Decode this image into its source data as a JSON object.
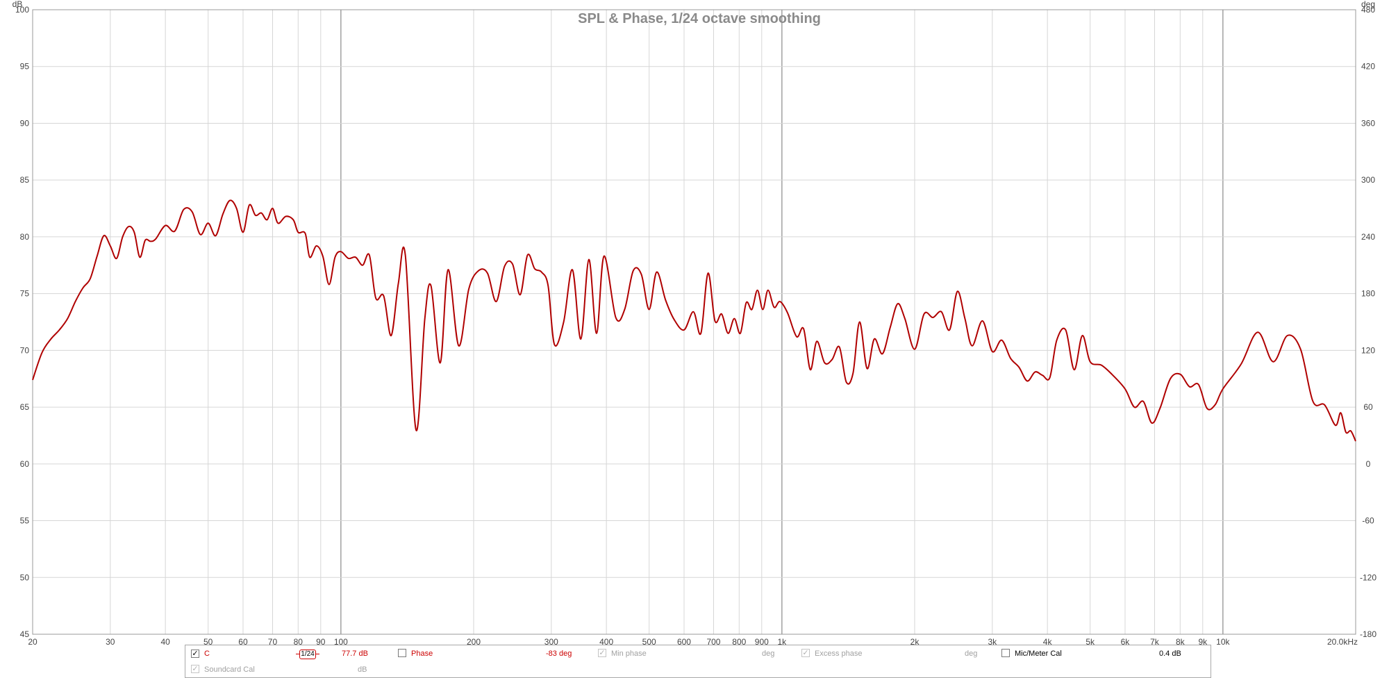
{
  "chart_data": {
    "type": "line",
    "title": "SPL & Phase, 1/24 octave smoothing",
    "x_scale": "log",
    "xlim": [
      20,
      20000
    ],
    "ylim": [
      45,
      100
    ],
    "y2lim": [
      -180,
      480
    ],
    "y_unit": "dB",
    "y2_unit": "deg",
    "x_unit": "kHz",
    "grid": true,
    "x_tick_labels": [
      {
        "v": 20,
        "t": "20"
      },
      {
        "v": 30,
        "t": "30"
      },
      {
        "v": 40,
        "t": "40"
      },
      {
        "v": 50,
        "t": "50"
      },
      {
        "v": 60,
        "t": "60"
      },
      {
        "v": 70,
        "t": "70"
      },
      {
        "v": 80,
        "t": "80"
      },
      {
        "v": 90,
        "t": "90"
      },
      {
        "v": 100,
        "t": "100"
      },
      {
        "v": 200,
        "t": "200"
      },
      {
        "v": 300,
        "t": "300"
      },
      {
        "v": 400,
        "t": "400"
      },
      {
        "v": 500,
        "t": "500"
      },
      {
        "v": 600,
        "t": "600"
      },
      {
        "v": 700,
        "t": "700"
      },
      {
        "v": 800,
        "t": "800"
      },
      {
        "v": 900,
        "t": "900"
      },
      {
        "v": 1000,
        "t": "1k"
      },
      {
        "v": 2000,
        "t": "2k"
      },
      {
        "v": 3000,
        "t": "3k"
      },
      {
        "v": 4000,
        "t": "4k"
      },
      {
        "v": 5000,
        "t": "5k"
      },
      {
        "v": 6000,
        "t": "6k"
      },
      {
        "v": 7000,
        "t": "7k"
      },
      {
        "v": 8000,
        "t": "8k"
      },
      {
        "v": 9000,
        "t": "9k"
      },
      {
        "v": 10000,
        "t": "10k"
      },
      {
        "v": 20000,
        "t": "20.0kHz"
      }
    ],
    "y_ticks": [
      45,
      50,
      55,
      60,
      65,
      70,
      75,
      80,
      85,
      90,
      95,
      100
    ],
    "y2_ticks": [
      -180,
      -120,
      -60,
      0,
      60,
      120,
      180,
      240,
      300,
      360,
      420,
      480
    ],
    "series": [
      {
        "name": "C",
        "color": "#b00000",
        "points": [
          [
            20,
            67.4
          ],
          [
            21,
            69.8
          ],
          [
            22,
            71.0
          ],
          [
            23,
            71.8
          ],
          [
            24,
            72.8
          ],
          [
            25,
            74.3
          ],
          [
            26,
            75.5
          ],
          [
            27,
            76.3
          ],
          [
            28,
            78.3
          ],
          [
            29,
            80.1
          ],
          [
            30,
            79.2
          ],
          [
            31,
            78.1
          ],
          [
            32,
            80.0
          ],
          [
            33,
            80.9
          ],
          [
            34,
            80.4
          ],
          [
            35,
            78.2
          ],
          [
            36,
            79.7
          ],
          [
            37,
            79.6
          ],
          [
            38,
            79.8
          ],
          [
            40,
            81.0
          ],
          [
            42,
            80.5
          ],
          [
            44,
            82.4
          ],
          [
            46,
            82.2
          ],
          [
            48,
            80.2
          ],
          [
            50,
            81.2
          ],
          [
            52,
            80.1
          ],
          [
            54,
            82.0
          ],
          [
            56,
            83.2
          ],
          [
            58,
            82.5
          ],
          [
            60,
            80.4
          ],
          [
            62,
            82.8
          ],
          [
            64,
            81.9
          ],
          [
            66,
            82.1
          ],
          [
            68,
            81.5
          ],
          [
            70,
            82.5
          ],
          [
            72,
            81.2
          ],
          [
            75,
            81.8
          ],
          [
            78,
            81.5
          ],
          [
            80,
            80.4
          ],
          [
            83,
            80.3
          ],
          [
            85,
            78.2
          ],
          [
            88,
            79.2
          ],
          [
            91,
            78.3
          ],
          [
            94,
            75.8
          ],
          [
            97,
            78.2
          ],
          [
            100,
            78.7
          ],
          [
            104,
            78.1
          ],
          [
            108,
            78.2
          ],
          [
            112,
            77.5
          ],
          [
            116,
            78.4
          ],
          [
            120,
            74.6
          ],
          [
            125,
            74.8
          ],
          [
            130,
            71.3
          ],
          [
            135,
            75.9
          ],
          [
            140,
            78.4
          ],
          [
            148,
            63.0
          ],
          [
            155,
            72.8
          ],
          [
            160,
            75.7
          ],
          [
            168,
            68.9
          ],
          [
            175,
            77.1
          ],
          [
            185,
            70.4
          ],
          [
            195,
            75.4
          ],
          [
            205,
            77.0
          ],
          [
            215,
            76.8
          ],
          [
            225,
            74.3
          ],
          [
            235,
            77.4
          ],
          [
            245,
            77.6
          ],
          [
            255,
            74.9
          ],
          [
            265,
            78.4
          ],
          [
            275,
            77.2
          ],
          [
            285,
            76.9
          ],
          [
            295,
            75.7
          ],
          [
            305,
            70.5
          ],
          [
            320,
            72.5
          ],
          [
            335,
            77.1
          ],
          [
            350,
            71.0
          ],
          [
            365,
            78.0
          ],
          [
            380,
            71.5
          ],
          [
            395,
            78.3
          ],
          [
            420,
            72.9
          ],
          [
            440,
            73.6
          ],
          [
            460,
            77.0
          ],
          [
            480,
            76.7
          ],
          [
            500,
            73.6
          ],
          [
            520,
            76.9
          ],
          [
            545,
            74.4
          ],
          [
            570,
            72.7
          ],
          [
            600,
            71.8
          ],
          [
            630,
            73.4
          ],
          [
            655,
            71.5
          ],
          [
            680,
            76.8
          ],
          [
            705,
            72.6
          ],
          [
            730,
            73.2
          ],
          [
            755,
            71.5
          ],
          [
            780,
            72.8
          ],
          [
            805,
            71.5
          ],
          [
            830,
            74.2
          ],
          [
            855,
            73.6
          ],
          [
            880,
            75.3
          ],
          [
            905,
            73.6
          ],
          [
            930,
            75.3
          ],
          [
            960,
            73.8
          ],
          [
            990,
            74.3
          ],
          [
            1030,
            73.3
          ],
          [
            1080,
            71.2
          ],
          [
            1120,
            71.9
          ],
          [
            1160,
            68.3
          ],
          [
            1200,
            70.8
          ],
          [
            1250,
            68.9
          ],
          [
            1300,
            69.2
          ],
          [
            1350,
            70.3
          ],
          [
            1400,
            67.2
          ],
          [
            1450,
            68.0
          ],
          [
            1500,
            72.5
          ],
          [
            1560,
            68.4
          ],
          [
            1620,
            71.0
          ],
          [
            1690,
            69.7
          ],
          [
            1760,
            72.0
          ],
          [
            1830,
            74.1
          ],
          [
            1900,
            72.8
          ],
          [
            2000,
            70.1
          ],
          [
            2100,
            73.2
          ],
          [
            2200,
            72.9
          ],
          [
            2300,
            73.4
          ],
          [
            2400,
            71.8
          ],
          [
            2500,
            75.2
          ],
          [
            2600,
            72.8
          ],
          [
            2700,
            70.4
          ],
          [
            2850,
            72.6
          ],
          [
            3000,
            69.9
          ],
          [
            3150,
            70.9
          ],
          [
            3300,
            69.3
          ],
          [
            3450,
            68.5
          ],
          [
            3600,
            67.3
          ],
          [
            3750,
            68.1
          ],
          [
            3900,
            67.8
          ],
          [
            4050,
            67.6
          ],
          [
            4200,
            70.9
          ],
          [
            4400,
            71.8
          ],
          [
            4600,
            68.3
          ],
          [
            4800,
            71.3
          ],
          [
            5000,
            69.0
          ],
          [
            5300,
            68.7
          ],
          [
            5600,
            67.9
          ],
          [
            6000,
            66.6
          ],
          [
            6300,
            65.0
          ],
          [
            6600,
            65.5
          ],
          [
            6900,
            63.6
          ],
          [
            7200,
            64.9
          ],
          [
            7600,
            67.5
          ],
          [
            8000,
            67.9
          ],
          [
            8400,
            66.8
          ],
          [
            8800,
            67.0
          ],
          [
            9200,
            64.9
          ],
          [
            9600,
            65.2
          ],
          [
            10000,
            66.6
          ],
          [
            11000,
            68.8
          ],
          [
            12000,
            71.6
          ],
          [
            13000,
            69.0
          ],
          [
            14000,
            71.3
          ],
          [
            15000,
            70.1
          ],
          [
            16000,
            65.5
          ],
          [
            17000,
            65.2
          ],
          [
            18000,
            63.4
          ],
          [
            18500,
            64.5
          ],
          [
            19000,
            62.8
          ],
          [
            19500,
            62.9
          ],
          [
            20000,
            62.0
          ]
        ]
      }
    ]
  },
  "legend": {
    "trace_label": "C",
    "smoothing": "1/24",
    "spl_value": "77.7 dB",
    "phase_label": "Phase",
    "phase_value": "-83 deg",
    "min_phase_label": "Min phase",
    "min_phase_unit": "deg",
    "excess_phase_label": "Excess phase",
    "excess_phase_unit": "deg",
    "mic_cal_label": "Mic/Meter Cal",
    "mic_cal_value": "0.4 dB",
    "soundcard_cal_label": "Soundcard Cal",
    "soundcard_cal_unit": "dB",
    "check_mark": "✓"
  }
}
